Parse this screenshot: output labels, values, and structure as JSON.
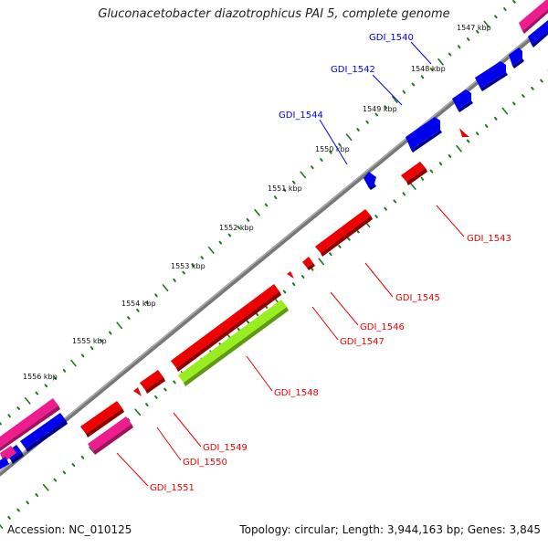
{
  "title": "Gluconacetobacter diazotrophicus PAI 5, complete genome",
  "accession": "Accession: NC_010125",
  "topology": "Topology: circular; Length: 3,944,163 bp; Genes: 3,845",
  "colors": {
    "forward": "#0000ee",
    "reverse": "#ee0000",
    "rrna": "#ee1c8e",
    "highlight": "#99ee22",
    "backbone": "#777777",
    "ticks": "#1f7a1f"
  },
  "kbp_labels": [
    "1547 kbp",
    "1548 kbp",
    "1549 kbp",
    "1550 kbp",
    "1551 kbp",
    "1552 kbp",
    "1553 kbp",
    "1554 kbp",
    "1555 kbp",
    "1556 kbp"
  ],
  "genes": [
    {
      "id": "GDI_1540",
      "strand": "forward",
      "labeled": true
    },
    {
      "id": "GDI_1542",
      "strand": "forward",
      "labeled": true
    },
    {
      "id": "GDI_1544",
      "strand": "forward",
      "labeled": true
    },
    {
      "id": "GDI_1543",
      "strand": "reverse",
      "labeled": true
    },
    {
      "id": "GDI_1545",
      "strand": "reverse",
      "labeled": true
    },
    {
      "id": "GDI_1546",
      "strand": "reverse",
      "labeled": true
    },
    {
      "id": "GDI_1547",
      "strand": "reverse",
      "labeled": true
    },
    {
      "id": "GDI_1548",
      "strand": "reverse",
      "labeled": true,
      "highlight": true
    },
    {
      "id": "GDI_1549",
      "strand": "reverse",
      "labeled": true
    },
    {
      "id": "GDI_1550",
      "strand": "reverse",
      "labeled": true
    },
    {
      "id": "GDI_1551",
      "strand": "reverse",
      "labeled": true
    }
  ]
}
